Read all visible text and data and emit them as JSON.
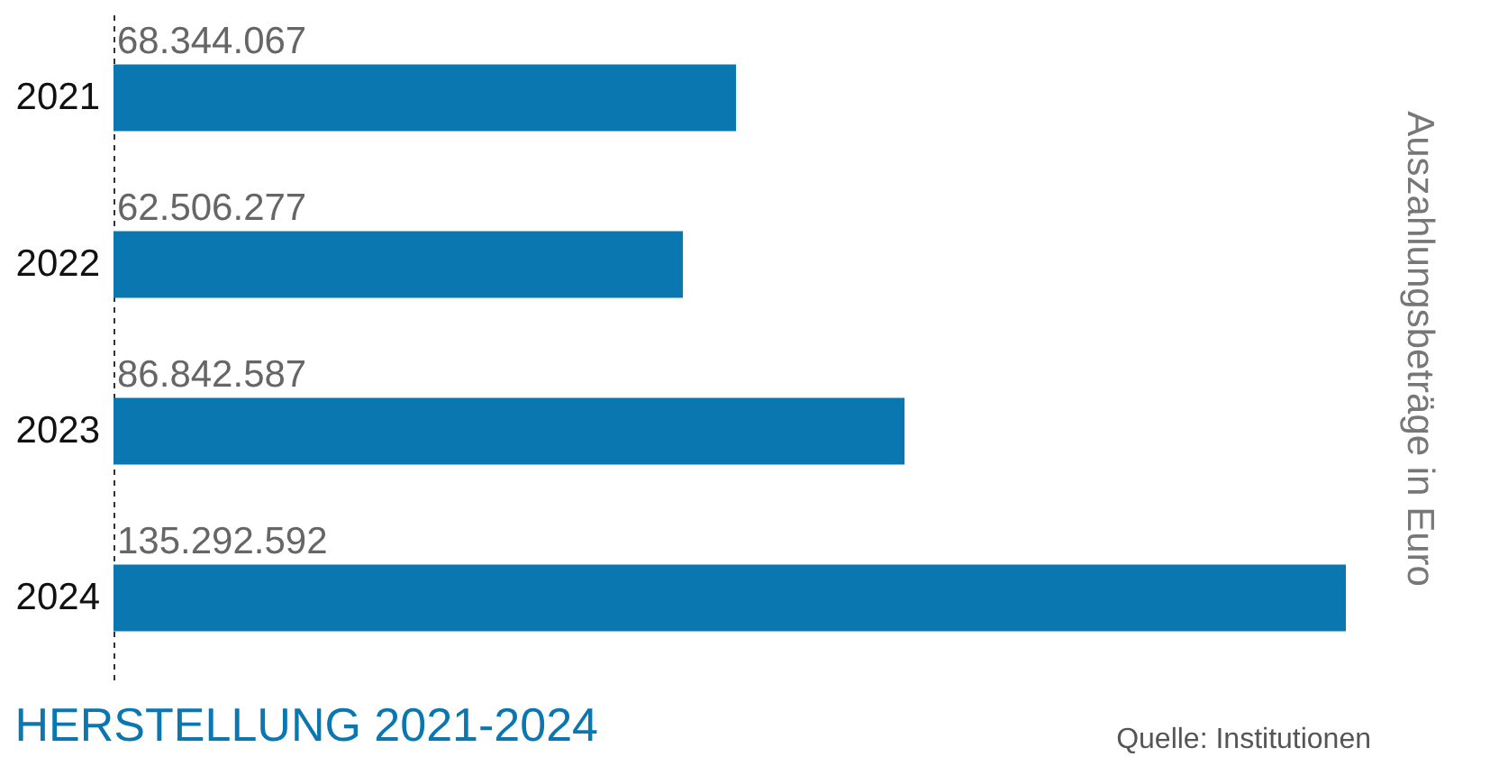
{
  "chart_data": {
    "type": "bar",
    "orientation": "horizontal",
    "title": "HERSTELLUNG 2021-2024",
    "ylabel": "Auszahlungsbeträge in Euro",
    "categories": [
      "2021",
      "2022",
      "2023",
      "2024"
    ],
    "values": [
      68344067,
      62506277,
      86842587,
      135292592
    ],
    "value_labels": [
      "68.344.067",
      "62.506.277",
      "86.842.587",
      "135.292.592"
    ],
    "color": "#0a77b0",
    "xlim": [
      0,
      135292592
    ],
    "tick_labels": "y",
    "annotations": [
      "Quelle: Institutionen"
    ]
  }
}
